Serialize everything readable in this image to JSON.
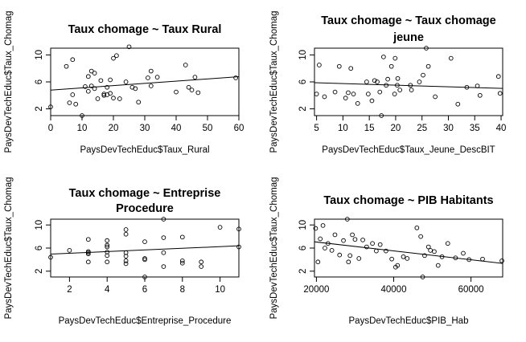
{
  "chart_data": [
    {
      "type": "scatter",
      "title": "Taux chomage ~ Taux Rural",
      "xlabel": "PaysDevTechEduc$Taux_Rural",
      "ylabel": "PaysDevTechEduc$Taux_Chomag",
      "xlim": [
        0,
        60
      ],
      "ylim": [
        1,
        11
      ],
      "xticks": [
        0,
        10,
        20,
        30,
        40,
        50,
        60
      ],
      "yticks": [
        2,
        6,
        10
      ],
      "grid": false,
      "points": [
        [
          0,
          2.3
        ],
        [
          5,
          8.3
        ],
        [
          6,
          2.9
        ],
        [
          7,
          4.1
        ],
        [
          7,
          9.3
        ],
        [
          8,
          2.7
        ],
        [
          10,
          1.0
        ],
        [
          11,
          5.3
        ],
        [
          12,
          6.8
        ],
        [
          12,
          4.6
        ],
        [
          13,
          7.6
        ],
        [
          13,
          5.4
        ],
        [
          14,
          5.0
        ],
        [
          14,
          7.3
        ],
        [
          15,
          3.5
        ],
        [
          16,
          6.2
        ],
        [
          17,
          4.2
        ],
        [
          17,
          4.0
        ],
        [
          18,
          4.1
        ],
        [
          18,
          5.2
        ],
        [
          19,
          4.3
        ],
        [
          19,
          6.3
        ],
        [
          20,
          9.5
        ],
        [
          20,
          3.6
        ],
        [
          21,
          9.9
        ],
        [
          22,
          3.5
        ],
        [
          24,
          6.0
        ],
        [
          25,
          11.2
        ],
        [
          26,
          5.2
        ],
        [
          27,
          5.0
        ],
        [
          28,
          3.0
        ],
        [
          31,
          6.6
        ],
        [
          32,
          5.4
        ],
        [
          32,
          7.6
        ],
        [
          34,
          6.7
        ],
        [
          40,
          4.5
        ],
        [
          43,
          8.5
        ],
        [
          44,
          5.2
        ],
        [
          45,
          4.8
        ],
        [
          46,
          6.7
        ],
        [
          47,
          4.4
        ],
        [
          59,
          6.6
        ]
      ],
      "trend": [
        [
          -1,
          4.75
        ],
        [
          61,
          6.8
        ]
      ]
    },
    {
      "type": "scatter",
      "title": "Taux chomage ~ Taux chomage jeune",
      "xlabel": "PaysDevTechEduc$Taux_Jeune_DescBIT",
      "ylabel": "PaysDevTechEduc$Taux_Chomag",
      "xlim": [
        4.6,
        40.3
      ],
      "ylim": [
        1,
        11
      ],
      "xticks": [
        5,
        10,
        15,
        20,
        25,
        30,
        35,
        40
      ],
      "yticks": [
        2,
        6,
        10
      ],
      "grid": false,
      "points": [
        [
          5.0,
          4.2
        ],
        [
          5.5,
          8.5
        ],
        [
          6.5,
          3.8
        ],
        [
          8.5,
          4.5
        ],
        [
          9.3,
          8.3
        ],
        [
          10.5,
          3.6
        ],
        [
          11.0,
          4.4
        ],
        [
          11.5,
          8.0
        ],
        [
          12.0,
          4.2
        ],
        [
          12.8,
          2.8
        ],
        [
          14.5,
          6.0
        ],
        [
          14.8,
          4.2
        ],
        [
          15.5,
          3.2
        ],
        [
          16.0,
          6.2
        ],
        [
          16.5,
          6.0
        ],
        [
          17.0,
          4.5
        ],
        [
          17.3,
          1.0
        ],
        [
          17.7,
          9.7
        ],
        [
          18.2,
          5.5
        ],
        [
          18.5,
          6.4
        ],
        [
          19.2,
          8.3
        ],
        [
          19.8,
          4.2
        ],
        [
          19.9,
          9.5
        ],
        [
          20.3,
          5.5
        ],
        [
          20.4,
          6.5
        ],
        [
          20.8,
          4.8
        ],
        [
          22.8,
          5.5
        ],
        [
          23.0,
          4.8
        ],
        [
          24.5,
          6.0
        ],
        [
          25.2,
          7.0
        ],
        [
          25.8,
          11.0
        ],
        [
          26.2,
          8.3
        ],
        [
          27.5,
          3.8
        ],
        [
          30.5,
          9.5
        ],
        [
          31.8,
          2.7
        ],
        [
          33.5,
          5.2
        ],
        [
          35.5,
          5.4
        ],
        [
          36.0,
          4.0
        ],
        [
          39.5,
          6.8
        ],
        [
          39.8,
          4.3
        ]
      ],
      "trend": [
        [
          3.5,
          5.9
        ],
        [
          41.5,
          5.0
        ]
      ]
    },
    {
      "type": "scatter",
      "title": "Taux chomage ~ Entreprise Procedure",
      "xlabel": "PaysDevTechEduc$Entreprise_Procedure",
      "ylabel": "PaysDevTechEduc$Taux_Chomag",
      "xlim": [
        1,
        11
      ],
      "ylim": [
        1,
        11
      ],
      "xticks": [
        2,
        4,
        6,
        8,
        10
      ],
      "yticks": [
        2,
        6,
        10
      ],
      "grid": false,
      "points": [
        [
          1,
          4.4
        ],
        [
          2,
          5.6
        ],
        [
          3,
          7.5
        ],
        [
          3,
          5.4
        ],
        [
          3,
          5.2
        ],
        [
          3,
          5.0
        ],
        [
          3,
          3.6
        ],
        [
          4,
          7.3
        ],
        [
          4,
          6.2
        ],
        [
          4,
          6.5
        ],
        [
          4,
          5.3
        ],
        [
          4,
          4.7
        ],
        [
          4,
          3.6
        ],
        [
          5,
          9.2
        ],
        [
          5,
          8.4
        ],
        [
          5,
          5.2
        ],
        [
          5,
          4.6
        ],
        [
          5,
          3.8
        ],
        [
          5,
          3.3
        ],
        [
          6,
          7.1
        ],
        [
          6,
          4.2
        ],
        [
          6,
          4.0
        ],
        [
          6,
          1.0
        ],
        [
          7,
          11.0
        ],
        [
          7,
          7.8
        ],
        [
          7,
          5.2
        ],
        [
          7,
          2.8
        ],
        [
          8,
          7.9
        ],
        [
          8,
          3.8
        ],
        [
          8,
          3.4
        ],
        [
          9,
          3.6
        ],
        [
          9,
          2.8
        ],
        [
          10,
          9.6
        ],
        [
          11,
          9.3
        ],
        [
          11,
          6.2
        ]
      ],
      "trend": [
        [
          0.6,
          4.9
        ],
        [
          11.4,
          6.45
        ]
      ]
    },
    {
      "type": "scatter",
      "title": "Taux chomage ~ PIB Habitants",
      "xlabel": "PaysDevTechEduc$PIB_Hab",
      "ylabel": "PaysDevTechEduc$Taux_Chomag",
      "xlim": [
        19500,
        68200
      ],
      "ylim": [
        1,
        11
      ],
      "xticks": [
        20000,
        40000,
        60000
      ],
      "yticks": [
        2,
        6,
        10
      ],
      "grid": false,
      "points": [
        [
          19800,
          9.4
        ],
        [
          20400,
          3.6
        ],
        [
          21000,
          7.6
        ],
        [
          21700,
          9.9
        ],
        [
          22200,
          6.0
        ],
        [
          23000,
          6.8
        ],
        [
          24000,
          5.6
        ],
        [
          24800,
          8.3
        ],
        [
          26000,
          4.8
        ],
        [
          27000,
          7.3
        ],
        [
          28000,
          11.0
        ],
        [
          28300,
          3.6
        ],
        [
          28700,
          4.7
        ],
        [
          29300,
          8.3
        ],
        [
          30000,
          7.5
        ],
        [
          31000,
          4.2
        ],
        [
          32000,
          7.4
        ],
        [
          33000,
          6.2
        ],
        [
          34500,
          6.8
        ],
        [
          35500,
          5.5
        ],
        [
          36500,
          6.6
        ],
        [
          38000,
          5.5
        ],
        [
          39500,
          4.1
        ],
        [
          40500,
          2.7
        ],
        [
          41000,
          3.0
        ],
        [
          42500,
          4.5
        ],
        [
          43500,
          4.2
        ],
        [
          46000,
          9.5
        ],
        [
          47000,
          8.0
        ],
        [
          47500,
          1.0
        ],
        [
          48000,
          4.7
        ],
        [
          49000,
          6.2
        ],
        [
          49500,
          5.6
        ],
        [
          50500,
          5.4
        ],
        [
          51500,
          3.0
        ],
        [
          52500,
          4.5
        ],
        [
          54000,
          6.8
        ],
        [
          56000,
          4.3
        ],
        [
          58000,
          5.1
        ],
        [
          59500,
          4.0
        ],
        [
          63000,
          4.1
        ],
        [
          68000,
          3.8
        ]
      ],
      "trend": [
        [
          18000,
          7.2
        ],
        [
          70000,
          3.2
        ]
      ]
    }
  ]
}
